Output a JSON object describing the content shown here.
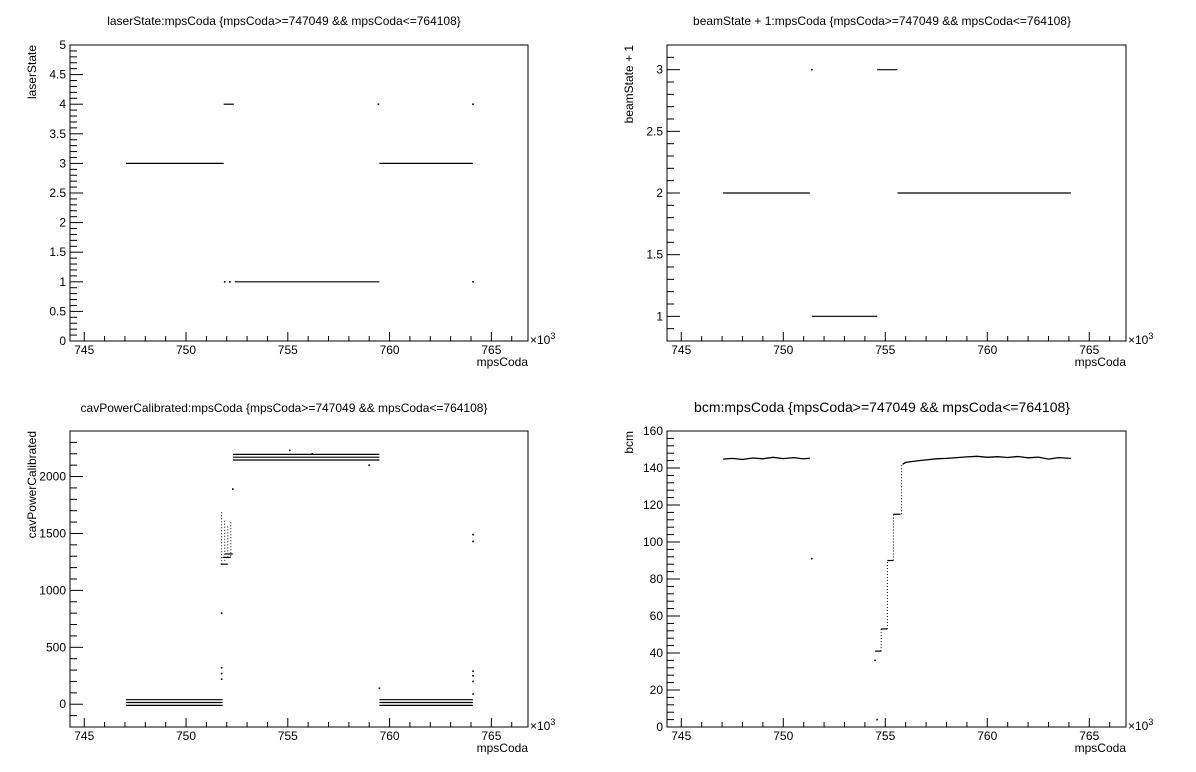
{
  "chart_data": [
    {
      "type": "scatter",
      "title": "laserState:mpsCoda {mpsCoda>=747049 && mpsCoda<=764108}",
      "xlabel": "mpsCoda",
      "ylabel": "laserState",
      "x_multiplier_label": "×10",
      "x_multiplier_exp": "3",
      "xlim": [
        744.3,
        766.8
      ],
      "ylim": [
        0,
        5
      ],
      "xticks": [
        "745",
        "750",
        "755",
        "760",
        "765"
      ],
      "xtick_values": [
        745,
        750,
        755,
        760,
        765
      ],
      "yticks": [
        "0",
        "0.5",
        "1",
        "1.5",
        "2",
        "2.5",
        "3",
        "3.5",
        "4",
        "4.5",
        "5"
      ],
      "ytick_values": [
        0,
        0.5,
        1,
        1.5,
        2,
        2.5,
        3,
        3.5,
        4,
        4.5,
        5
      ],
      "segments": [
        {
          "x0": 747.05,
          "x1": 751.85,
          "y": 3
        },
        {
          "x0": 751.85,
          "x1": 752.35,
          "y": 4
        },
        {
          "x0": 752.4,
          "x1": 759.5,
          "y": 1
        },
        {
          "x0": 759.5,
          "x1": 764.1,
          "y": 3
        }
      ],
      "points": [
        {
          "x": 751.9,
          "y": 1
        },
        {
          "x": 752.15,
          "y": 1
        },
        {
          "x": 759.45,
          "y": 4
        },
        {
          "x": 764.1,
          "y": 4
        },
        {
          "x": 764.1,
          "y": 1
        }
      ]
    },
    {
      "type": "scatter",
      "title": "beamState + 1:mpsCoda {mpsCoda>=747049 && mpsCoda<=764108}",
      "xlabel": "mpsCoda",
      "ylabel": "beamState + 1",
      "x_multiplier_label": "×10",
      "x_multiplier_exp": "3",
      "xlim": [
        744.3,
        766.8
      ],
      "ylim": [
        0.8,
        3.2
      ],
      "xticks": [
        "745",
        "750",
        "755",
        "760",
        "765"
      ],
      "xtick_values": [
        745,
        750,
        755,
        760,
        765
      ],
      "yticks": [
        "1",
        "1.5",
        "2",
        "2.5",
        "3"
      ],
      "ytick_values": [
        1,
        1.5,
        2,
        2.5,
        3
      ],
      "segments": [
        {
          "x0": 747.05,
          "x1": 751.3,
          "y": 2
        },
        {
          "x0": 751.4,
          "x1": 754.6,
          "y": 1
        },
        {
          "x0": 754.6,
          "x1": 755.6,
          "y": 3
        },
        {
          "x0": 755.6,
          "x1": 764.1,
          "y": 2
        }
      ],
      "points": [
        {
          "x": 751.4,
          "y": 3
        }
      ]
    },
    {
      "type": "scatter",
      "title": "cavPowerCalibrated:mpsCoda {mpsCoda>=747049 && mpsCoda<=764108}",
      "xlabel": "mpsCoda",
      "ylabel": "cavPowerCalibrated",
      "x_multiplier_label": "×10",
      "x_multiplier_exp": "3",
      "xlim": [
        744.3,
        766.8
      ],
      "ylim": [
        -200,
        2400
      ],
      "xticks": [
        "745",
        "750",
        "755",
        "760",
        "765"
      ],
      "xtick_values": [
        745,
        750,
        755,
        760,
        765
      ],
      "yticks": [
        "0",
        "500",
        "1000",
        "1500",
        "2000"
      ],
      "ytick_values": [
        0,
        500,
        1000,
        1500,
        2000
      ],
      "segments": [
        {
          "x0": 747.05,
          "x1": 751.8,
          "y": 40
        },
        {
          "x0": 747.05,
          "x1": 751.8,
          "y": 15
        },
        {
          "x0": 747.05,
          "x1": 751.8,
          "y": -10
        },
        {
          "x0": 751.7,
          "x1": 752.05,
          "y": 1230
        },
        {
          "x0": 751.8,
          "x1": 752.2,
          "y": 1290
        },
        {
          "x0": 751.9,
          "x1": 752.3,
          "y": 1320
        },
        {
          "x0": 752.3,
          "x1": 759.5,
          "y": 2195
        },
        {
          "x0": 752.3,
          "x1": 759.5,
          "y": 2170
        },
        {
          "x0": 752.3,
          "x1": 759.5,
          "y": 2145
        },
        {
          "x0": 759.5,
          "x1": 764.1,
          "y": 40
        },
        {
          "x0": 759.5,
          "x1": 764.1,
          "y": 15
        },
        {
          "x0": 759.5,
          "x1": 764.1,
          "y": -10
        }
      ],
      "verticals": [
        {
          "x": 751.75,
          "y0": 1230,
          "y1": 1700
        },
        {
          "x": 751.9,
          "y0": 1260,
          "y1": 1620
        },
        {
          "x": 752.05,
          "y0": 1290,
          "y1": 1580
        },
        {
          "x": 752.2,
          "y0": 1300,
          "y1": 1600
        }
      ],
      "points": [
        {
          "x": 751.75,
          "y": 800
        },
        {
          "x": 751.75,
          "y": 320
        },
        {
          "x": 751.75,
          "y": 270
        },
        {
          "x": 751.75,
          "y": 220
        },
        {
          "x": 752.3,
          "y": 1890
        },
        {
          "x": 755.1,
          "y": 2230
        },
        {
          "x": 756.2,
          "y": 2200
        },
        {
          "x": 759.0,
          "y": 2100
        },
        {
          "x": 759.5,
          "y": 140
        },
        {
          "x": 764.1,
          "y": 1490
        },
        {
          "x": 764.1,
          "y": 1430
        },
        {
          "x": 764.1,
          "y": 290
        },
        {
          "x": 764.1,
          "y": 250
        },
        {
          "x": 764.1,
          "y": 200
        },
        {
          "x": 764.1,
          "y": 90
        }
      ]
    },
    {
      "type": "scatter",
      "title": "bcm:mpsCoda {mpsCoda>=747049 && mpsCoda<=764108}",
      "xlabel": "mpsCoda",
      "ylabel": "bcm",
      "x_multiplier_label": "×10",
      "x_multiplier_exp": "3",
      "xlim": [
        744.3,
        766.8
      ],
      "ylim": [
        0,
        160
      ],
      "xticks": [
        "745",
        "750",
        "755",
        "760",
        "765"
      ],
      "xtick_values": [
        745,
        750,
        755,
        760,
        765
      ],
      "yticks": [
        "0",
        "20",
        "40",
        "60",
        "80",
        "100",
        "120",
        "140",
        "160"
      ],
      "ytick_values": [
        0,
        20,
        40,
        60,
        80,
        100,
        120,
        140,
        160
      ],
      "lines": [
        [
          [
            747.05,
            144.8
          ],
          [
            747.5,
            145.2
          ],
          [
            748.0,
            144.6
          ],
          [
            748.5,
            145.4
          ],
          [
            749.0,
            145.0
          ],
          [
            749.5,
            145.8
          ],
          [
            750.0,
            145.1
          ],
          [
            750.5,
            145.6
          ],
          [
            751.0,
            144.9
          ],
          [
            751.3,
            145.3
          ]
        ],
        [
          [
            755.85,
            142.0
          ],
          [
            756.0,
            143.0
          ],
          [
            756.5,
            143.8
          ],
          [
            757.0,
            144.4
          ],
          [
            757.5,
            145.0
          ],
          [
            758.0,
            145.2
          ],
          [
            758.5,
            145.6
          ],
          [
            759.0,
            146.0
          ],
          [
            759.5,
            146.3
          ],
          [
            760.0,
            145.8
          ],
          [
            760.5,
            146.1
          ],
          [
            761.0,
            145.7
          ],
          [
            761.5,
            146.2
          ],
          [
            762.0,
            145.5
          ],
          [
            762.5,
            145.9
          ],
          [
            763.0,
            144.8
          ],
          [
            763.5,
            145.6
          ],
          [
            764.1,
            145.2
          ]
        ]
      ],
      "segments": [
        {
          "x0": 754.5,
          "x1": 754.8,
          "y": 41
        },
        {
          "x0": 754.8,
          "x1": 755.1,
          "y": 53
        },
        {
          "x0": 755.1,
          "x1": 755.4,
          "y": 90
        },
        {
          "x0": 755.4,
          "x1": 755.75,
          "y": 115
        }
      ],
      "verticals": [
        {
          "x": 754.8,
          "y0": 41,
          "y1": 53
        },
        {
          "x": 755.1,
          "y0": 53,
          "y1": 90
        },
        {
          "x": 755.4,
          "y0": 90,
          "y1": 115
        },
        {
          "x": 755.8,
          "y0": 115,
          "y1": 142
        }
      ],
      "points": [
        {
          "x": 751.4,
          "y": 91
        },
        {
          "x": 754.5,
          "y": 36
        },
        {
          "x": 754.6,
          "y": 4
        }
      ]
    }
  ]
}
